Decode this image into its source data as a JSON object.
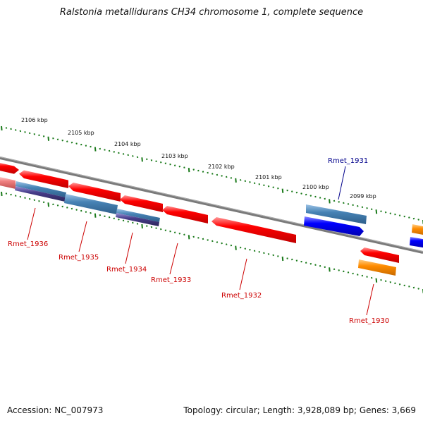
{
  "title": "Ralstonia metallidurans CH34 chromosome 1, complete sequence",
  "footer": {
    "accession": "Accession: NC_007973",
    "topology": "Topology: circular; Length: 3,928,089 bp; Genes: 3,669"
  },
  "colors": {
    "backbone": "#808080",
    "tick": "#1a7a1a",
    "gene_red": "#ff0000",
    "gene_blue": "#0000ff",
    "gene_steel": "#4682b4",
    "gene_purple": "#483d8b",
    "gene_orange": "#ff8c00",
    "label_red": "#cc0000",
    "label_blue": "#00008b"
  },
  "tick_labels": [
    "2106 kbp",
    "2105 kbp",
    "2104 kbp",
    "2103 kbp",
    "2102 kbp",
    "2101 kbp",
    "2100 kbp",
    "2099 kbp"
  ],
  "gene_labels": [
    {
      "text": "Rmet_1936",
      "color": "red"
    },
    {
      "text": "Rmet_1935",
      "color": "red"
    },
    {
      "text": "Rmet_1934",
      "color": "red"
    },
    {
      "text": "Rmet_1933",
      "color": "red"
    },
    {
      "text": "Rmet_1932",
      "color": "red"
    },
    {
      "text": "Rmet_1931",
      "color": "blue"
    },
    {
      "text": "Rmet_1930",
      "color": "red"
    }
  ]
}
